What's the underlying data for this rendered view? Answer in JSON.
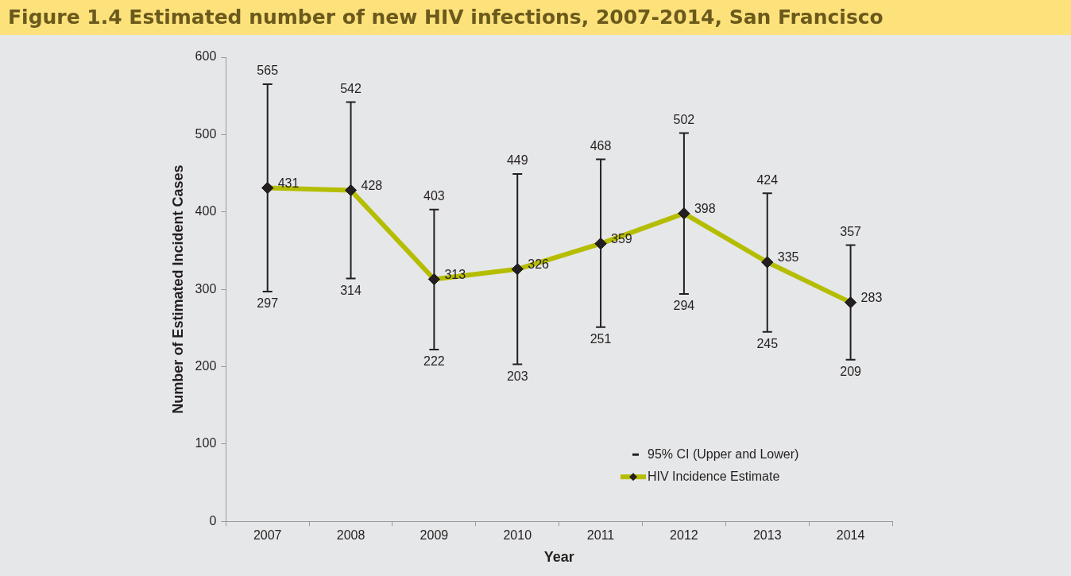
{
  "chart_data": {
    "type": "line",
    "title": "Figure 1.4  Estimated number of new HIV infections, 2007-2014, San Francisco",
    "xlabel": "Year",
    "ylabel": "Number of Estimated Incident Cases",
    "categories": [
      "2007",
      "2008",
      "2009",
      "2010",
      "2011",
      "2012",
      "2013",
      "2014"
    ],
    "series": [
      {
        "name": "HIV Incidence Estimate",
        "color": "#b5bd00",
        "values": [
          431,
          428,
          313,
          326,
          359,
          398,
          335,
          283
        ],
        "errors": [
          [
            297,
            565
          ],
          [
            314,
            542
          ],
          [
            222,
            403
          ],
          [
            203,
            449
          ],
          [
            251,
            468
          ],
          [
            294,
            502
          ],
          [
            245,
            424
          ],
          [
            209,
            357
          ]
        ]
      }
    ],
    "annotations": [
      "95% CI (Upper and Lower)",
      {
        "text": "565",
        "x": "2007",
        "y": 565
      },
      {
        "text": "297",
        "x": "2007",
        "y": 297
      },
      {
        "text": "542",
        "x": "2008",
        "y": 542
      },
      {
        "text": "314",
        "x": "2008",
        "y": 314
      },
      {
        "text": "403",
        "x": "2009",
        "y": 403
      },
      {
        "text": "222",
        "x": "2009",
        "y": 222
      },
      {
        "text": "449",
        "x": "2010",
        "y": 449
      },
      {
        "text": "203",
        "x": "2010",
        "y": 203
      },
      {
        "text": "468",
        "x": "2011",
        "y": 468
      },
      {
        "text": "251",
        "x": "2011",
        "y": 251
      },
      {
        "text": "502",
        "x": "2012",
        "y": 502
      },
      {
        "text": "294",
        "x": "2012",
        "y": 294
      },
      {
        "text": "424",
        "x": "2013",
        "y": 424
      },
      {
        "text": "245",
        "x": "2013",
        "y": 245
      },
      {
        "text": "357",
        "x": "2014",
        "y": 357
      },
      {
        "text": "209",
        "x": "2014",
        "y": 209
      }
    ],
    "ylim": [
      0,
      600
    ],
    "yticks": [
      0,
      100,
      200,
      300,
      400,
      500,
      600
    ],
    "grid": false,
    "legend": "bottom right",
    "marker": "diamond",
    "line_style": "solid",
    "data_labels": true
  }
}
